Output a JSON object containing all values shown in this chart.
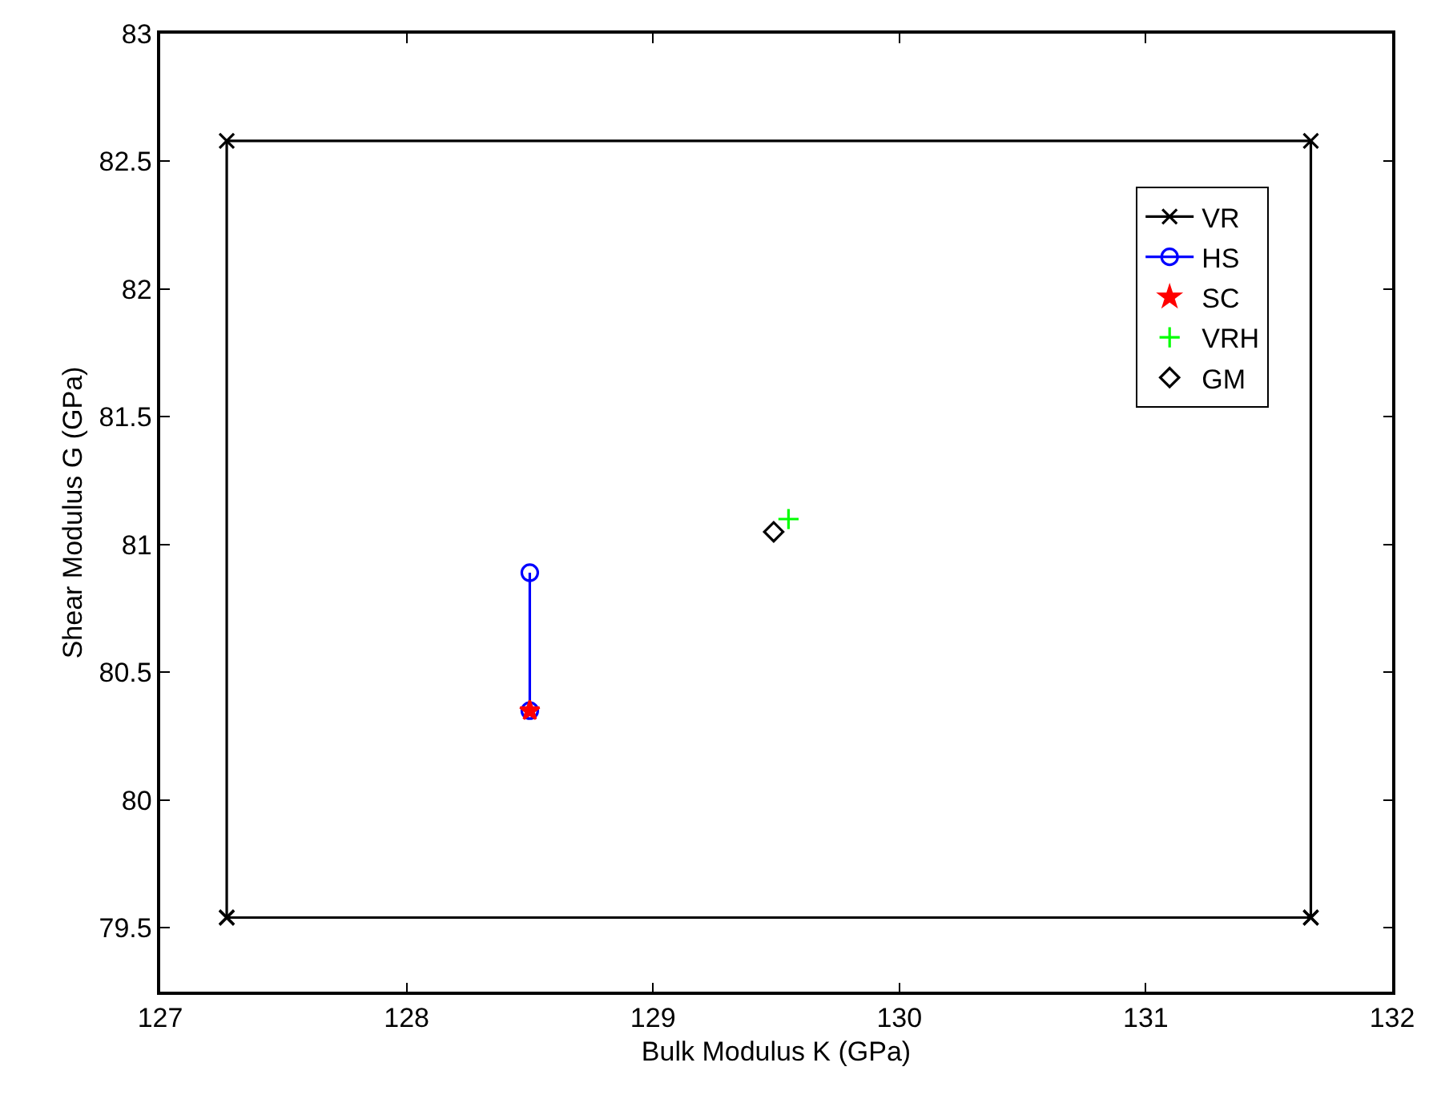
{
  "chart_data": {
    "type": "scatter",
    "xlabel": "Bulk Modulus K (GPa)",
    "ylabel": "Shear Modulus G (GPa)",
    "xlim": [
      127,
      132
    ],
    "xticks": [
      127,
      128,
      129,
      130,
      131,
      132
    ],
    "ylim": [
      79.25,
      83
    ],
    "yticks": [
      79.5,
      80,
      80.5,
      81,
      81.5,
      82,
      82.5,
      83
    ],
    "grid": false,
    "legend": "top right",
    "series": [
      {
        "name": "VR",
        "type": "line",
        "color": "#000000",
        "marker": "cross",
        "x": [
          127.27,
          127.27,
          131.67,
          131.67,
          null,
          127.27,
          131.67
        ],
        "values": [
          79.54,
          82.58,
          82.58,
          79.54,
          null,
          79.54,
          79.54
        ]
      },
      {
        "name": "HS",
        "type": "line",
        "color": "#0000ff",
        "marker": "circle",
        "x": [
          128.5,
          128.5
        ],
        "values": [
          80.89,
          80.35
        ]
      },
      {
        "name": "SC",
        "type": "scatter",
        "color": "#ff0000",
        "marker": "star",
        "x": [
          128.5
        ],
        "values": [
          80.35
        ]
      },
      {
        "name": "VRH",
        "type": "scatter",
        "color": "#00ff00",
        "marker": "cross",
        "x": [
          129.55
        ],
        "values": [
          81.1
        ]
      },
      {
        "name": "GM",
        "type": "scatter",
        "color": "#000000",
        "marker": "diamond",
        "x": [
          129.49
        ],
        "values": [
          81.05
        ]
      }
    ]
  }
}
